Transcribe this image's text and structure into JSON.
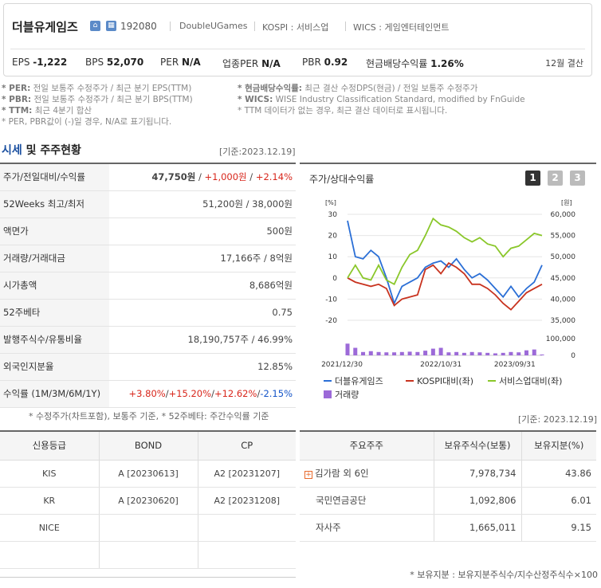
{
  "header": {
    "name": "더블유게임즈",
    "code": "192080",
    "meta": [
      "DoubleUGames",
      "KOSPI : 서비스업",
      "WICS : 게임엔터테인먼트"
    ],
    "ratios": [
      {
        "label": "EPS",
        "value": "-1,222"
      },
      {
        "label": "BPS",
        "value": "52,070"
      },
      {
        "label": "PER",
        "value": "N/A"
      },
      {
        "label": "업종PER",
        "value": "N/A"
      },
      {
        "label": "PBR",
        "value": "0.92"
      },
      {
        "label": "현금배당수익률",
        "value": "1.26%"
      }
    ],
    "settlement": "12월 결산"
  },
  "notes": {
    "left": [
      {
        "key": "* PER:",
        "text": " 전일 보통주 수정주가 / 최근 분기 EPS(TTM)"
      },
      {
        "key": "* PBR:",
        "text": " 전일 보통주 수정주가 / 최근 분기 BPS(TTM)"
      },
      {
        "key": "* TTM:",
        "text": " 최근 4분기 합산"
      },
      {
        "key": "",
        "text": "* PER, PBR값이 (-)일 경우, N/A로 표기됩니다."
      }
    ],
    "right": [
      {
        "key": "* 현금배당수익률:",
        "text": " 최근 결산 수정DPS(현금) / 전일 보통주 수정주가"
      },
      {
        "key": "* WICS:",
        "text": " WISE Industry Classification Standard, modified by FnGuide"
      },
      {
        "key": "",
        "text": "* TTM 데이터가 없는 경우, 최근 결산 데이터로 표시됩니다."
      }
    ]
  },
  "section": {
    "title_blue": "시세",
    "title_rest": " 및 주주현황",
    "ref": "[기준:2023.12.19]"
  },
  "price_table": [
    {
      "label": "주가/전일대비/수익률",
      "v1": "47,750원",
      "v2": "+1,000원",
      "v3": "+2.14%"
    },
    {
      "label": "52Weeks 최고/최저",
      "value": "51,200원 / 38,000원"
    },
    {
      "label": "액면가",
      "value": "500원"
    },
    {
      "label": "거래량/거래대금",
      "value": "17,166주 / 8억원"
    },
    {
      "label": "시가총액",
      "value": "8,686억원"
    },
    {
      "label": "52주베타",
      "value": "0.75"
    },
    {
      "label": "발행주식수/유통비율",
      "value": "18,190,757주 / 46.99%"
    },
    {
      "label": "외국인지분율",
      "value": "12.85%"
    },
    {
      "label": "수익률 (1M/3M/6M/1Y)",
      "r1": "+3.80%",
      "r2": "+15.20%",
      "r3": "+12.62%",
      "r4": "-2.15%"
    }
  ],
  "price_footnote": "* 수정주가(차트포함), 보통주 기준, * 52주베타: 주간수익률 기준",
  "chart_title": "주가/상대수익률",
  "chart_pages": [
    "1",
    "2",
    "3"
  ],
  "chart_data": {
    "type": "line",
    "x_ticks": [
      "2021/12/30",
      "2022/10/31",
      "2023/09/31"
    ],
    "left_axis": {
      "unit": "[%]",
      "ticks": [
        "30",
        "20",
        "10",
        "0",
        "-10",
        "-20"
      ],
      "range": [
        -20,
        30
      ]
    },
    "right_axis": {
      "unit": "[원]",
      "ticks": [
        "60,000",
        "55,000",
        "50,000",
        "45,000",
        "40,000",
        "35,000"
      ],
      "range": [
        35000,
        60000
      ]
    },
    "volume_axis": {
      "ticks": [
        "100,000",
        "0"
      ],
      "range": [
        0,
        100000
      ]
    },
    "series": [
      {
        "name": "더블유게임즈",
        "color": "#2b6fd6",
        "axis": "left",
        "values": [
          27,
          10,
          9,
          13,
          10,
          0,
          -12,
          -4,
          -2,
          0,
          5,
          7,
          8,
          5,
          9,
          4,
          0,
          2,
          -1,
          -5,
          -9,
          -4,
          -9,
          -5,
          -2,
          6
        ]
      },
      {
        "name": "KOSPI대비(좌)",
        "color": "#c8331f",
        "axis": "left",
        "values": [
          0,
          -2,
          -3,
          -4,
          -3,
          -5,
          -13,
          -10,
          -9,
          -8,
          4,
          6,
          2,
          7,
          5,
          2,
          -3,
          -3,
          -5,
          -8,
          -12,
          -15,
          -11,
          -7,
          -5,
          -3
        ]
      },
      {
        "name": "서비스업대비(좌)",
        "color": "#8ac72a",
        "axis": "left",
        "values": [
          0,
          6,
          0,
          -1,
          6,
          -1,
          -3,
          5,
          11,
          13,
          20,
          28,
          25,
          24,
          22,
          19,
          17,
          19,
          16,
          15,
          10,
          14,
          15,
          18,
          21,
          20
        ]
      },
      {
        "name": "거래량",
        "color": "#9c6ad8",
        "axis": "volume",
        "values": [
          70,
          45,
          20,
          25,
          20,
          18,
          18,
          20,
          22,
          20,
          28,
          40,
          45,
          18,
          20,
          15,
          20,
          18,
          15,
          12,
          15,
          20,
          18,
          30,
          35,
          5
        ]
      }
    ],
    "legend": [
      "더블유게임즈",
      "KOSPI대비(좌)",
      "서비스업대비(좌)",
      "거래량"
    ]
  },
  "credit": {
    "headers": [
      "신용등급",
      "BOND",
      "CP"
    ],
    "rows": [
      [
        "KIS",
        "A [20230613]",
        "A2 [20231207]"
      ],
      [
        "KR",
        "A [20230620]",
        "A2 [20231208]"
      ],
      [
        "NICE",
        "",
        ""
      ],
      [
        "",
        "",
        ""
      ]
    ]
  },
  "holders": {
    "ref": "[기준: 2023.12.19]",
    "headers": [
      "주요주주",
      "보유주식수(보통)",
      "보유지분(%)"
    ],
    "rows": [
      {
        "name": "김가람 외 6인",
        "shares": "7,978,734",
        "pct": "43.86"
      },
      {
        "name": "국민연금공단",
        "shares": "1,092,806",
        "pct": "6.01"
      },
      {
        "name": "자사주",
        "shares": "1,665,011",
        "pct": "9.15"
      }
    ],
    "footnote": "* 보유지분 : 보유지분주식수/지수산정주식수×100"
  },
  "colors": {
    "accent_blue": "#1a4fa0",
    "up_red": "#d8261b",
    "down_blue": "#1454c8"
  }
}
